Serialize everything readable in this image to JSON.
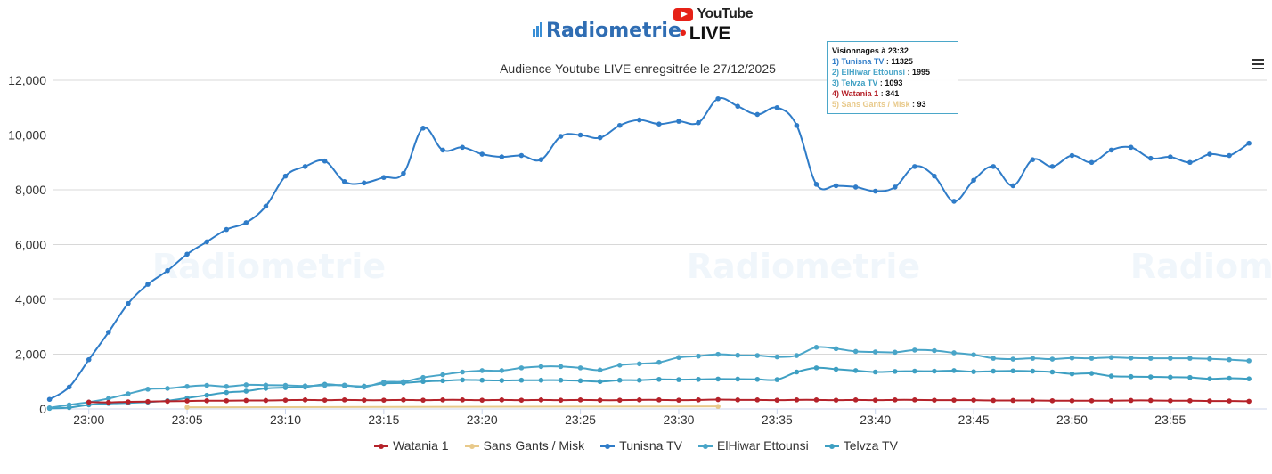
{
  "brand": {
    "name": "Radiometrie",
    "youtube": "YouTube",
    "live": "LIVE"
  },
  "watermark": "Radiometrie",
  "chart_data": {
    "type": "line",
    "title": "Audience Youtube LIVE enregsitrée le 27/12/2025",
    "ylim": [
      0,
      12000
    ],
    "yticks": [
      "0",
      "2,000",
      "4,000",
      "6,000",
      "8,000",
      "10,000",
      "12,000"
    ],
    "xticks": [
      "23:00",
      "23:05",
      "23:10",
      "23:15",
      "23:20",
      "23:25",
      "23:30",
      "23:35",
      "23:40",
      "23:45",
      "23:50",
      "23:55"
    ],
    "x": [
      "22:58",
      "22:59",
      "23:00",
      "23:01",
      "23:02",
      "23:03",
      "23:04",
      "23:05",
      "23:06",
      "23:07",
      "23:08",
      "23:09",
      "23:10",
      "23:11",
      "23:12",
      "23:13",
      "23:14",
      "23:15",
      "23:16",
      "23:17",
      "23:18",
      "23:19",
      "23:20",
      "23:21",
      "23:22",
      "23:23",
      "23:24",
      "23:25",
      "23:26",
      "23:27",
      "23:28",
      "23:29",
      "23:30",
      "23:31",
      "23:32",
      "23:33",
      "23:34",
      "23:35",
      "23:36",
      "23:37",
      "23:38",
      "23:39",
      "23:40",
      "23:41",
      "23:42",
      "23:43",
      "23:44",
      "23:45",
      "23:46",
      "23:47",
      "23:48",
      "23:49",
      "23:50",
      "23:51",
      "23:52",
      "23:53",
      "23:54",
      "23:55",
      "23:56",
      "23:57",
      "23:58",
      "23:59"
    ],
    "grid": true,
    "legend_position": "bottom",
    "series": [
      {
        "name": "Watania 1",
        "color": "#b5222a",
        "values": [
          null,
          null,
          250,
          240,
          260,
          270,
          280,
          290,
          300,
          300,
          310,
          310,
          320,
          330,
          320,
          330,
          320,
          320,
          330,
          320,
          330,
          330,
          320,
          330,
          320,
          330,
          320,
          330,
          320,
          320,
          330,
          330,
          320,
          330,
          341,
          330,
          330,
          320,
          330,
          330,
          320,
          330,
          320,
          330,
          330,
          320,
          320,
          320,
          310,
          310,
          310,
          300,
          300,
          300,
          300,
          310,
          310,
          300,
          300,
          290,
          290,
          280
        ]
      },
      {
        "name": "Sans Gants / Misk",
        "color": "#e8c98a",
        "values": [
          null,
          null,
          null,
          null,
          null,
          null,
          null,
          60,
          null,
          null,
          null,
          null,
          null,
          null,
          null,
          null,
          null,
          null,
          null,
          null,
          null,
          null,
          null,
          null,
          null,
          null,
          null,
          null,
          null,
          null,
          null,
          null,
          null,
          null,
          93,
          null,
          null,
          null,
          null,
          null,
          null,
          null,
          null,
          null,
          null,
          null,
          null,
          null,
          null,
          null,
          null,
          null,
          null,
          null,
          null,
          null,
          null,
          null,
          null,
          null,
          null,
          null
        ]
      },
      {
        "name": "Tunisna TV",
        "color": "#2f7cc8",
        "values": [
          350,
          800,
          1800,
          2800,
          3850,
          4550,
          5050,
          5650,
          6100,
          6550,
          6800,
          7400,
          8500,
          8850,
          9050,
          8300,
          8250,
          8450,
          8600,
          10250,
          9450,
          9550,
          9300,
          9200,
          9250,
          9100,
          9950,
          10000,
          9900,
          10350,
          10550,
          10400,
          10500,
          10450,
          11325,
          11050,
          10750,
          11000,
          10350,
          8200,
          8150,
          8100,
          7950,
          8100,
          8850,
          8500,
          7580,
          8350,
          8850,
          8150,
          9100,
          8850,
          9250,
          9000,
          9450,
          9550,
          9150,
          9200,
          9000,
          9300,
          9250,
          9700
        ]
      },
      {
        "name": "ElHiwar Ettounsi",
        "color": "#49a5c8",
        "values": [
          40,
          150,
          250,
          380,
          550,
          720,
          750,
          820,
          860,
          820,
          880,
          870,
          860,
          840,
          860,
          870,
          800,
          980,
          1000,
          1150,
          1250,
          1350,
          1400,
          1400,
          1500,
          1550,
          1550,
          1500,
          1420,
          1600,
          1650,
          1700,
          1880,
          1930,
          1995,
          1960,
          1950,
          1900,
          1950,
          2250,
          2200,
          2100,
          2080,
          2070,
          2150,
          2130,
          2050,
          1980,
          1850,
          1820,
          1850,
          1820,
          1860,
          1850,
          1880,
          1860,
          1850,
          1850,
          1850,
          1830,
          1800,
          1760
        ]
      },
      {
        "name": "Telvza TV",
        "color": "#3d9fc2",
        "values": [
          20,
          50,
          150,
          200,
          220,
          250,
          300,
          400,
          500,
          600,
          650,
          750,
          780,
          800,
          900,
          850,
          830,
          930,
          950,
          1000,
          1030,
          1060,
          1050,
          1040,
          1050,
          1050,
          1050,
          1030,
          1000,
          1050,
          1050,
          1080,
          1070,
          1080,
          1093,
          1090,
          1080,
          1070,
          1350,
          1500,
          1450,
          1400,
          1350,
          1370,
          1380,
          1380,
          1400,
          1360,
          1380,
          1390,
          1380,
          1350,
          1280,
          1300,
          1200,
          1180,
          1170,
          1160,
          1150,
          1100,
          1120,
          1100
        ]
      }
    ]
  },
  "tooltip": {
    "title": "Visionnages à 23:32",
    "rows": [
      {
        "label": "1) Tunisna TV",
        "value": "11325",
        "color": "#2f7cc8"
      },
      {
        "label": "2) ElHiwar Ettounsi",
        "value": "1995",
        "color": "#49a5c8"
      },
      {
        "label": "3) Telvza TV",
        "value": "1093",
        "color": "#3d9fc2"
      },
      {
        "label": "4) Watania 1",
        "value": "341",
        "color": "#b5222a"
      },
      {
        "label": "5) Sans Gants / Misk",
        "value": "93",
        "color": "#e8c98a"
      }
    ]
  }
}
